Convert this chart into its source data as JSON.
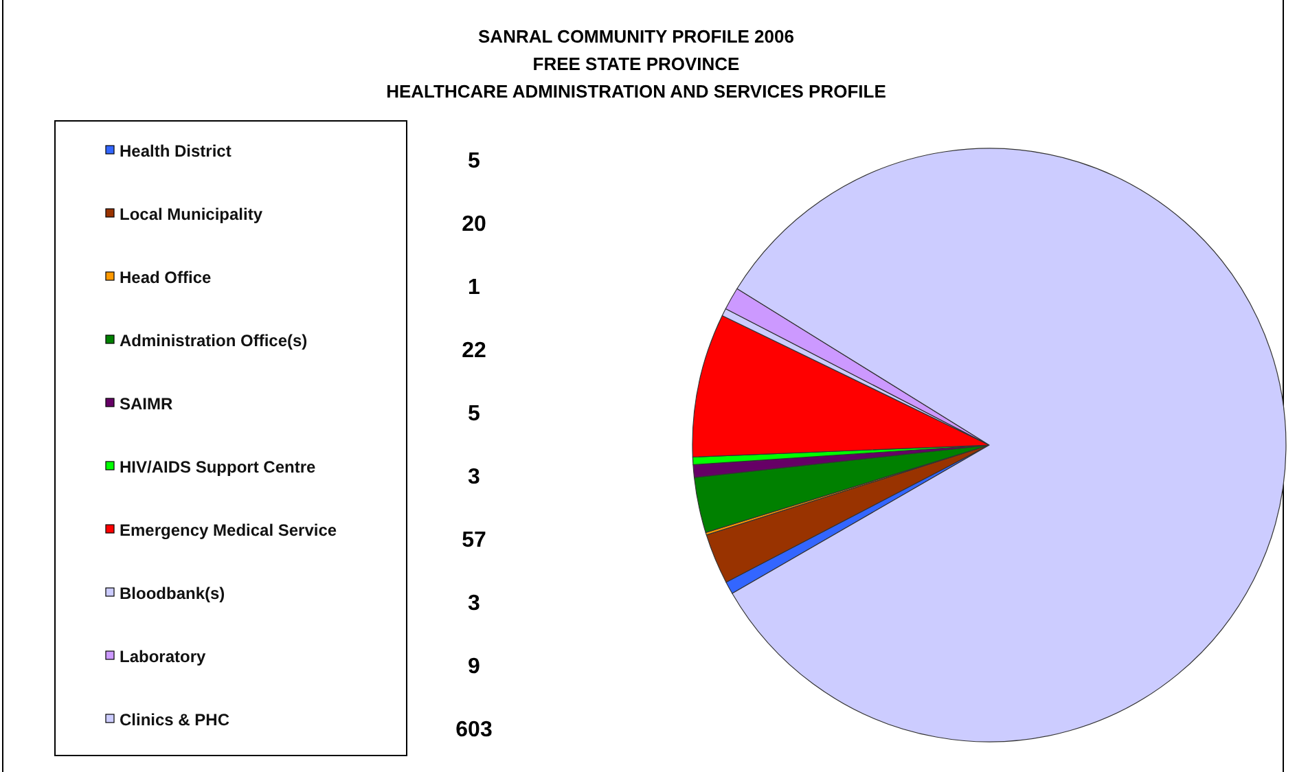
{
  "chart_data": {
    "type": "pie",
    "title": "SANRAL COMMUNITY PROFILE 2006\nFREE STATE PROVINCE\nHEALTHCARE ADMINISTRATION AND SERVICES PROFILE",
    "categories": [
      "Health District",
      "Local Municipality",
      "Head Office",
      "Administration Office(s)",
      "SAIMR",
      "HIV/AIDS Support Centre",
      "Emergency Medical Service",
      "Bloodbank(s)",
      "Laboratory",
      "Clinics & PHC"
    ],
    "values": [
      5,
      20,
      1,
      22,
      5,
      3,
      57,
      3,
      9,
      603
    ],
    "colors": [
      "#3366ff",
      "#993300",
      "#ff9900",
      "#008000",
      "#660066",
      "#00ff00",
      "#ff0000",
      "#ccccff",
      "#cc99ff",
      "#ccccff"
    ],
    "data_labels": true,
    "legend": "left"
  }
}
